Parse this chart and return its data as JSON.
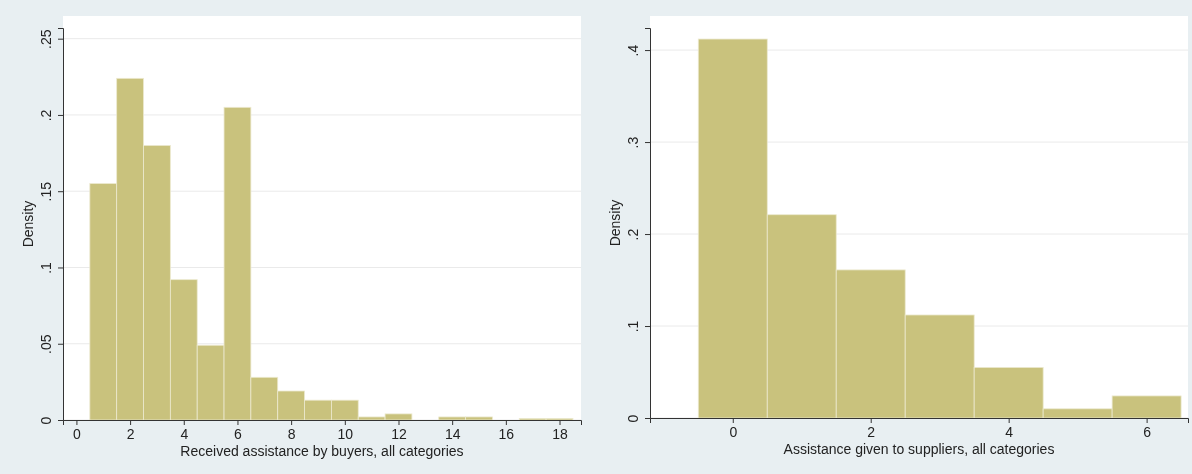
{
  "chart_data": [
    {
      "type": "histogram",
      "xlabel": "Received assistance by buyers, all categories",
      "ylabel": "Density",
      "bins": [
        0.5,
        1.5,
        2.5,
        3.5,
        4.5,
        5.5,
        6.5,
        7.5,
        8.5,
        9.5,
        10.5,
        11.5,
        12.5,
        13.5,
        14.5,
        15.5,
        16.5,
        17.5,
        18.5
      ],
      "values": [
        0.155,
        0.224,
        0.18,
        0.092,
        0.049,
        0.205,
        0.028,
        0.019,
        0.013,
        0.013,
        0.002,
        0.004,
        0,
        0.002,
        0.002,
        0,
        0.001,
        0.001
      ],
      "color": "#c9c27d",
      "xlim": [
        -0.5,
        18.8
      ],
      "ylim": [
        0,
        0.257
      ],
      "xticks": [
        0,
        2,
        4,
        6,
        8,
        10,
        12,
        14,
        16,
        18
      ],
      "yticks": [
        0,
        {
          "value": 0.05,
          "label": ".05"
        },
        {
          "value": 0.1,
          "label": ".1"
        },
        {
          "value": 0.15,
          "label": ".15"
        },
        {
          "value": 0.2,
          "label": ".2"
        },
        {
          "value": 0.25,
          "label": ".25"
        }
      ],
      "grid": "y"
    },
    {
      "type": "histogram",
      "xlabel": "Assistance given to suppliers, all categories",
      "ylabel": "Density",
      "bins": [
        -0.5,
        0.5,
        1.5,
        2.5,
        3.5,
        4.5,
        5.5,
        6.5
      ],
      "values": [
        0.412,
        0.221,
        0.161,
        0.112,
        0.055,
        0.01,
        0.024
      ],
      "color": "#c9c27d",
      "xlim": [
        -1.2,
        6.6
      ],
      "ylim": [
        0,
        0.424
      ],
      "xticks": [
        0,
        2,
        4,
        6
      ],
      "yticks": [
        0,
        {
          "value": 0.1,
          "label": ".1"
        },
        {
          "value": 0.2,
          "label": ".2"
        },
        {
          "value": 0.3,
          "label": ".3"
        },
        {
          "value": 0.4,
          "label": ".4"
        }
      ],
      "grid": "y"
    }
  ]
}
